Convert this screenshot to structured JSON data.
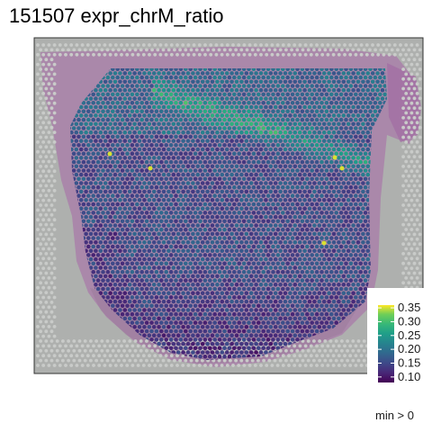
{
  "chart_data": {
    "type": "heatmap",
    "title": "151507 expr_chrM_ratio",
    "caption": "min > 0",
    "xlabel": "",
    "ylabel": "",
    "colormap": "viridis",
    "legend": {
      "placement": "bottom-right",
      "range": [
        0.08,
        0.36
      ],
      "ticks": [
        {
          "value": 0.35,
          "label": "0.35"
        },
        {
          "value": 0.3,
          "label": "0.30"
        },
        {
          "value": 0.25,
          "label": "0.25"
        },
        {
          "value": 0.2,
          "label": "0.20"
        },
        {
          "value": 0.15,
          "label": "0.15"
        },
        {
          "value": 0.1,
          "label": "0.10"
        }
      ]
    },
    "background": {
      "panel": "#aeb0ae",
      "tissue_stain": "#a77aa6",
      "fiducial_spots": "#c9cbc9"
    }
  }
}
